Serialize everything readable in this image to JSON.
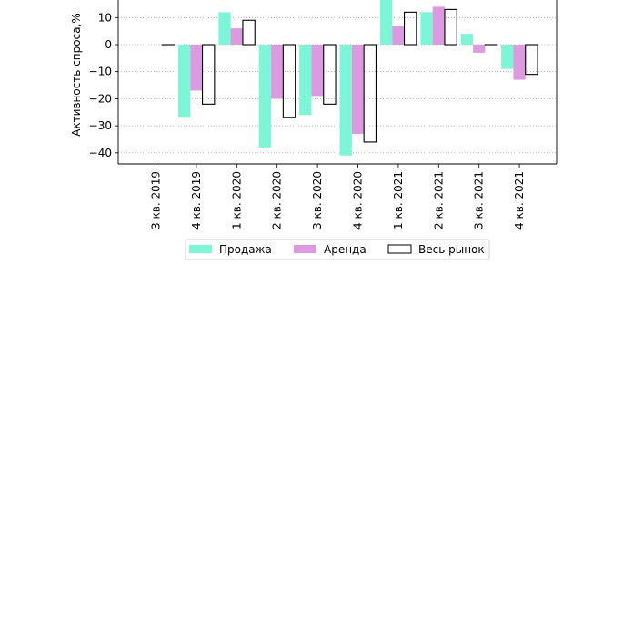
{
  "chart_data": {
    "type": "bar",
    "title": "",
    "xlabel": "",
    "ylabel": "Активность спроса,%",
    "categories": [
      "3 кв. 2019",
      "4 кв. 2019",
      "1 кв. 2020",
      "2 кв. 2020",
      "3 кв. 2020",
      "4 кв. 2020",
      "1 кв. 2021",
      "2 кв. 2021",
      "3 кв. 2021",
      "4 кв. 2021"
    ],
    "yticks": [
      "10",
      "0",
      "−10",
      "−20",
      "−30",
      "−40"
    ],
    "ytick_values": [
      10,
      0,
      -10,
      -20,
      -30,
      -40
    ],
    "ylim": [
      -44,
      16.5
    ],
    "grid": "horizontal dotted",
    "legend_position": "bottom-center",
    "series": [
      {
        "name": "Продажа",
        "color": "#7ff5d7",
        "style": "filled",
        "values": [
          0,
          -27,
          12,
          -38,
          -26,
          -41,
          17,
          12,
          4,
          -9
        ]
      },
      {
        "name": "Аренда",
        "color": "#dc9be1",
        "style": "filled",
        "values": [
          0,
          -17,
          6,
          -20,
          -19,
          -33,
          7,
          14,
          -3,
          -13
        ]
      },
      {
        "name": "Весь рынок",
        "color": "#000000",
        "style": "outline",
        "values": [
          0,
          -22,
          9,
          -27,
          -22,
          -36,
          12,
          13,
          0,
          -11
        ]
      }
    ]
  }
}
